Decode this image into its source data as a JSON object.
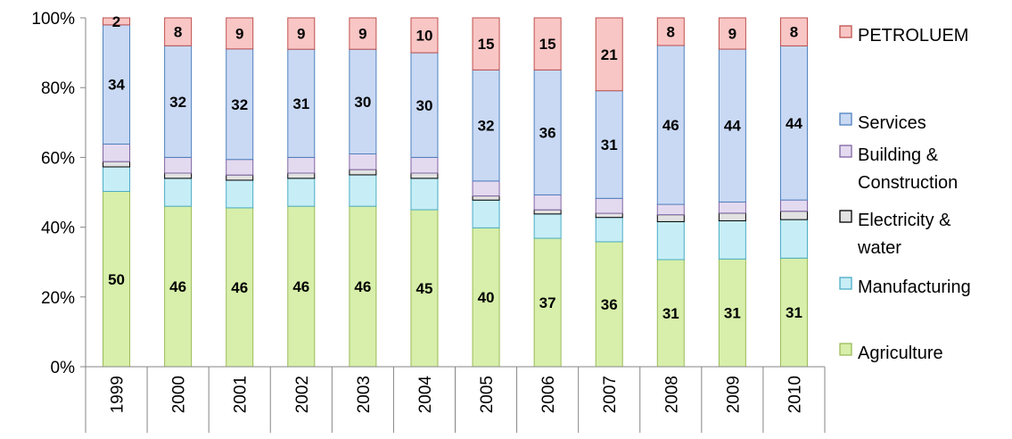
{
  "chart_data": {
    "type": "bar",
    "stacked": true,
    "percent_stacked": true,
    "title": "",
    "xlabel": "",
    "ylabel": "",
    "ylim": [
      0,
      100
    ],
    "y_ticks": [
      "0%",
      "20%",
      "40%",
      "60%",
      "80%",
      "100%"
    ],
    "categories": [
      "1999",
      "2000",
      "2001",
      "2002",
      "2003",
      "2004",
      "2005",
      "2006",
      "2007",
      "2008",
      "2009",
      "2010"
    ],
    "series": [
      {
        "name": "Agriculture",
        "color": "#D7EFAA",
        "values": [
          50,
          46,
          46,
          46,
          46,
          45,
          40,
          37,
          36,
          31,
          31,
          31
        ],
        "labels": [
          "50",
          "46",
          "46",
          "46",
          "46",
          "45",
          "40",
          "37",
          "36",
          "31",
          "31",
          "31"
        ]
      },
      {
        "name": "Manufacturing",
        "color": "#C7EEF6",
        "values": [
          7,
          8,
          8,
          8,
          9,
          9,
          8,
          7,
          7,
          11,
          11,
          11
        ],
        "labels": null
      },
      {
        "name": "Electricity & water",
        "color": "#E2E2E2",
        "values": [
          1.5,
          1.5,
          1.5,
          1.5,
          1.5,
          1.5,
          1.2,
          1.2,
          1.2,
          2,
          2.2,
          2.4
        ],
        "labels": null
      },
      {
        "name": "Building & Construction",
        "color": "#E3DAF0",
        "values": [
          5,
          4.5,
          4.5,
          4.5,
          4.5,
          4.5,
          4.3,
          4.3,
          4.3,
          3,
          3.2,
          3.2
        ],
        "labels": null
      },
      {
        "name": "Services",
        "color": "#C9D9F4",
        "values": [
          34,
          32,
          32,
          31,
          30,
          30,
          32,
          36,
          31,
          46,
          44,
          44
        ],
        "labels": [
          "34",
          "32",
          "32",
          "31",
          "30",
          "30",
          "32",
          "36",
          "31",
          "46",
          "44",
          "44"
        ]
      },
      {
        "name": "PETROLUEM",
        "color": "#F8C6C5",
        "values": [
          2,
          8,
          9,
          9,
          9,
          10,
          15,
          15,
          21,
          8,
          9,
          8
        ],
        "labels": [
          "2",
          "8",
          "9",
          "9",
          "9",
          "10",
          "15",
          "15",
          "21",
          "8",
          "9",
          "8"
        ]
      }
    ],
    "legend": {
      "position": "right",
      "items": [
        {
          "lines": [
            "PETROLUEM"
          ],
          "color": "#F8C6C5",
          "border": "#C0504D"
        },
        {
          "lines": [
            "Services"
          ],
          "color": "#C9D9F4",
          "border": "#4F81BD"
        },
        {
          "lines": [
            "Building &",
            "Construction"
          ],
          "color": "#E3DAF0",
          "border": "#8064A2"
        },
        {
          "lines": [
            "Electricity &",
            "water"
          ],
          "color": "#E2E2E2",
          "border": "#000000"
        },
        {
          "lines": [
            "Manufacturing"
          ],
          "color": "#C7EEF6",
          "border": "#4BACC6"
        },
        {
          "lines": [
            "Agriculture"
          ],
          "color": "#D7EFAA",
          "border": "#9BBB59"
        }
      ]
    },
    "series_borders": {
      "Agriculture": "#9BBB59",
      "Manufacturing": "#4BACC6",
      "Electricity & water": "#000000",
      "Building & Construction": "#8064A2",
      "Services": "#4F81BD",
      "PETROLUEM": "#C0504D"
    },
    "grid": false,
    "axis_color": "#868686"
  }
}
